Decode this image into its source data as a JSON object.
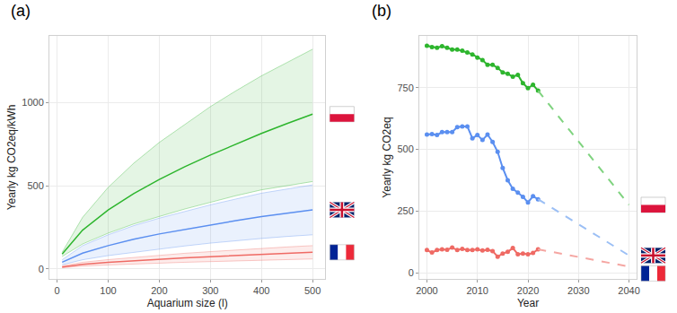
{
  "chart_data": [
    {
      "type": "line",
      "label": "(a)",
      "x_label": "Aquarium size (l)",
      "y_label": "Yearly kg CO2eq/kWh",
      "x": [
        10,
        50,
        100,
        150,
        200,
        250,
        300,
        350,
        400,
        450,
        500
      ],
      "series": [
        {
          "color": "#2db52d",
          "values": [
            89,
            233,
            354,
            452,
            537,
            614,
            684,
            751,
            814,
            873,
            930
          ],
          "lower": [
            75,
            150,
            215,
            270,
            315,
            360,
            400,
            440,
            475,
            500,
            525
          ],
          "upper": [
            100,
            310,
            490,
            635,
            760,
            870,
            975,
            1070,
            1160,
            1240,
            1320
          ]
        },
        {
          "color": "#5b8ff0",
          "values": [
            40,
            95,
            140,
            178,
            210,
            238,
            265,
            290,
            315,
            335,
            355
          ],
          "lower": [
            25,
            55,
            80,
            100,
            120,
            138,
            155,
            170,
            183,
            195,
            205
          ],
          "upper": [
            55,
            140,
            205,
            260,
            305,
            345,
            385,
            420,
            455,
            480,
            505
          ]
        },
        {
          "color": "#ef6a64",
          "values": [
            12,
            28,
            40,
            50,
            59,
            67,
            74,
            81,
            88,
            94,
            100
          ],
          "lower": [
            7,
            17,
            24,
            30,
            35,
            40,
            44,
            49,
            53,
            57,
            60
          ],
          "upper": [
            18,
            40,
            56,
            70,
            83,
            94,
            104,
            114,
            123,
            132,
            140
          ]
        }
      ],
      "xlim": [
        -15,
        525
      ],
      "xticks": [
        0,
        100,
        200,
        300,
        400,
        500
      ],
      "ylim": [
        -60,
        1400
      ],
      "yticks": [
        0,
        500,
        1000
      ],
      "grid": true
    },
    {
      "type": "line",
      "label": "(b)",
      "x_label": "Year",
      "y_label": "Yearly kg CO2eq",
      "series": [
        {
          "color": "#2db52d",
          "marker": "circle",
          "line_style": "solid",
          "x": [
            2000,
            2001,
            2002,
            2003,
            2004,
            2005,
            2006,
            2007,
            2008,
            2009,
            2010,
            2011,
            2012,
            2013,
            2014,
            2015,
            2016,
            2017,
            2018,
            2019,
            2020,
            2021,
            2022
          ],
          "values": [
            920,
            915,
            912,
            918,
            912,
            905,
            905,
            900,
            893,
            885,
            872,
            862,
            843,
            843,
            830,
            812,
            806,
            795,
            802,
            768,
            748,
            762,
            738
          ]
        },
        {
          "color": "#7fd37f",
          "line_style": "dashed",
          "x": [
            2022,
            2040
          ],
          "values": [
            738,
            275
          ]
        },
        {
          "color": "#5b8ff0",
          "marker": "circle",
          "line_style": "solid",
          "x": [
            2000,
            2001,
            2002,
            2003,
            2004,
            2005,
            2006,
            2007,
            2008,
            2009,
            2010,
            2011,
            2012,
            2013,
            2014,
            2015,
            2016,
            2017,
            2018,
            2019,
            2020,
            2021,
            2022
          ],
          "values": [
            560,
            562,
            558,
            570,
            570,
            570,
            590,
            593,
            593,
            545,
            558,
            538,
            560,
            530,
            490,
            425,
            375,
            340,
            325,
            308,
            285,
            310,
            298
          ]
        },
        {
          "color": "#9bbff5",
          "line_style": "dashed",
          "x": [
            2022,
            2040
          ],
          "values": [
            298,
            70
          ]
        },
        {
          "color": "#ef6a64",
          "marker": "circle",
          "line_style": "solid",
          "x": [
            2000,
            2001,
            2002,
            2003,
            2004,
            2005,
            2006,
            2007,
            2008,
            2009,
            2010,
            2011,
            2012,
            2013,
            2014,
            2015,
            2016,
            2017,
            2018,
            2019,
            2020,
            2021,
            2022
          ],
          "values": [
            92,
            82,
            92,
            95,
            93,
            102,
            92,
            97,
            92,
            92,
            95,
            90,
            93,
            88,
            65,
            78,
            85,
            100,
            75,
            78,
            75,
            80,
            95
          ]
        },
        {
          "color": "#f5a6a2",
          "line_style": "dashed",
          "x": [
            2022,
            2040
          ],
          "values": [
            95,
            25
          ]
        }
      ],
      "xlim": [
        1998.5,
        2041.5
      ],
      "xticks": [
        2000,
        2010,
        2020,
        2030,
        2040
      ],
      "ylim": [
        -25,
        960
      ],
      "yticks": [
        0,
        250,
        500,
        750
      ],
      "grid": true
    }
  ]
}
